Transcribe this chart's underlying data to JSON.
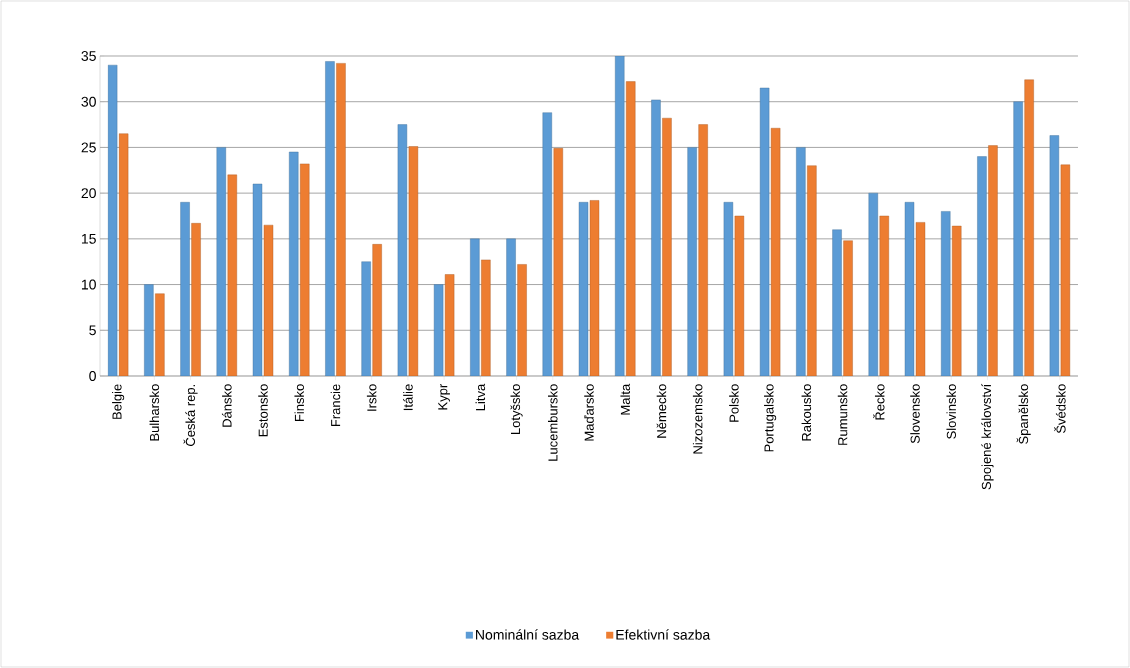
{
  "chart_data": {
    "type": "bar",
    "categories": [
      "Belgie",
      "Bulharsko",
      "Česká rep.",
      "Dánsko",
      "Estonsko",
      "Finsko",
      "Francie",
      "Irsko",
      "Itálie",
      "Kypr",
      "Litva",
      "Lotyšsko",
      "Lucembursko",
      "Maďarsko",
      "Malta",
      "Německo",
      "Nizozemsko",
      "Polsko",
      "Portugalsko",
      "Rakousko",
      "Rumunsko",
      "Řecko",
      "Slovensko",
      "Slovinsko",
      "Spojené království",
      "Španělsko",
      "Švédsko"
    ],
    "series": [
      {
        "name": "Nominální sazba",
        "color": "#5b9bd5",
        "values": [
          34,
          10,
          19,
          25,
          21,
          24.5,
          34.4,
          12.5,
          27.5,
          10,
          15,
          15,
          28.8,
          19,
          35,
          30.2,
          25,
          19,
          31.5,
          25,
          16,
          20,
          19,
          18,
          24,
          30,
          26.3
        ]
      },
      {
        "name": "Efektivní sazba",
        "color": "#ed7d31",
        "values": [
          26.5,
          9,
          16.7,
          22,
          16.5,
          23.2,
          34.2,
          14.4,
          25.1,
          11.1,
          12.7,
          12.2,
          24.9,
          19.2,
          32.2,
          28.2,
          27.5,
          17.5,
          27.1,
          23,
          14.8,
          17.5,
          16.8,
          16.4,
          25.2,
          32.4,
          23.1
        ]
      }
    ],
    "ylim": [
      0,
      35
    ],
    "yticks": [
      0,
      5,
      10,
      15,
      20,
      25,
      30,
      35
    ],
    "grid": "y",
    "legend": "bottom"
  }
}
